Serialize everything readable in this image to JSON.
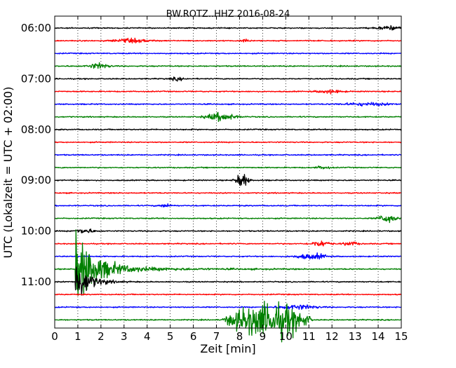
{
  "chart_data": {
    "type": "line",
    "title": "BW.ROTZ..HHZ 2016-08-24",
    "xlabel": "Zeit  [min]",
    "ylabel": "UTC (Lokalzeit = UTC + 02:00)",
    "xlim": [
      0,
      15
    ],
    "x_ticks": [
      "0",
      "1",
      "2",
      "3",
      "4",
      "5",
      "6",
      "7",
      "8",
      "9",
      "10",
      "11",
      "12",
      "13",
      "14",
      "15"
    ],
    "y_ticks": [
      {
        "label": "06:00",
        "hour": 6.0
      },
      {
        "label": "07:00",
        "hour": 7.0
      },
      {
        "label": "08:00",
        "hour": 8.0
      },
      {
        "label": "09:00",
        "hour": 9.0
      },
      {
        "label": "10:00",
        "hour": 10.0
      },
      {
        "label": "11:00",
        "hour": 11.0
      }
    ],
    "row_interval_minutes": 15,
    "row_colors": [
      "#000000",
      "#ff0000",
      "#0000ff",
      "#008000"
    ],
    "grid": "vertical-dotted",
    "traces": [
      {
        "start": "06:00",
        "color": "#000000",
        "noise": 1.6,
        "events": [
          {
            "t": 14.5,
            "amp": 3,
            "dur": 0.6
          }
        ]
      },
      {
        "start": "06:15",
        "color": "#ff0000",
        "noise": 1.6,
        "events": [
          {
            "t": 3.3,
            "amp": 3,
            "dur": 0.8
          },
          {
            "t": 8.3,
            "amp": 4,
            "dur": 0.15
          }
        ]
      },
      {
        "start": "06:30",
        "color": "#0000ff",
        "noise": 1.5,
        "events": []
      },
      {
        "start": "06:45",
        "color": "#008000",
        "noise": 1.5,
        "events": [
          {
            "t": 1.9,
            "amp": 5,
            "dur": 0.4
          }
        ]
      },
      {
        "start": "07:00",
        "color": "#000000",
        "noise": 1.6,
        "events": [
          {
            "t": 5.3,
            "amp": 2.5,
            "dur": 0.3
          }
        ]
      },
      {
        "start": "07:15",
        "color": "#ff0000",
        "noise": 1.6,
        "events": [
          {
            "t": 11.9,
            "amp": 3,
            "dur": 0.5
          }
        ]
      },
      {
        "start": "07:30",
        "color": "#0000ff",
        "noise": 1.6,
        "events": [
          {
            "t": 13.5,
            "amp": 2.5,
            "dur": 1
          }
        ]
      },
      {
        "start": "07:45",
        "color": "#008000",
        "noise": 1.5,
        "events": [
          {
            "t": 7.2,
            "amp": 7,
            "dur": 0.6
          }
        ]
      },
      {
        "start": "08:00",
        "color": "#000000",
        "noise": 1.6,
        "events": []
      },
      {
        "start": "08:15",
        "color": "#ff0000",
        "noise": 1.6,
        "events": []
      },
      {
        "start": "08:30",
        "color": "#0000ff",
        "noise": 1.6,
        "events": []
      },
      {
        "start": "08:45",
        "color": "#008000",
        "noise": 1.5,
        "events": [
          {
            "t": 11.6,
            "amp": 2.5,
            "dur": 0.3
          }
        ]
      },
      {
        "start": "09:00",
        "color": "#000000",
        "noise": 1.6,
        "events": [
          {
            "t": 8.1,
            "amp": 13,
            "dur": 0.25
          }
        ]
      },
      {
        "start": "09:15",
        "color": "#ff0000",
        "noise": 1.6,
        "events": []
      },
      {
        "start": "09:30",
        "color": "#0000ff",
        "noise": 1.5,
        "events": [
          {
            "t": 4.8,
            "amp": 2.5,
            "dur": 0.3
          }
        ]
      },
      {
        "start": "09:45",
        "color": "#008000",
        "noise": 1.5,
        "events": [
          {
            "t": 14.4,
            "amp": 8,
            "dur": 0.35
          }
        ]
      },
      {
        "start": "10:00",
        "color": "#000000",
        "noise": 1.6,
        "events": [
          {
            "t": 1.3,
            "amp": 4,
            "dur": 0.4
          }
        ]
      },
      {
        "start": "10:15",
        "color": "#ff0000",
        "noise": 1.6,
        "events": [
          {
            "t": 11.5,
            "amp": 5,
            "dur": 0.4
          },
          {
            "t": 12.8,
            "amp": 3.5,
            "dur": 0.3
          }
        ]
      },
      {
        "start": "10:30",
        "color": "#0000ff",
        "noise": 1.6,
        "events": [
          {
            "t": 10.9,
            "amp": 4,
            "dur": 0.5
          },
          {
            "t": 11.5,
            "amp": 3,
            "dur": 0.3
          }
        ]
      },
      {
        "start": "10:45",
        "color": "#008000",
        "noise": 1.5,
        "quake": {
          "start": 0.9,
          "amp": 68,
          "decay": 0.75,
          "floor": 5,
          "floor_decay": 3.2
        }
      },
      {
        "start": "11:00",
        "color": "#000000",
        "noise": 1.6,
        "quake": {
          "start": 0.9,
          "amp": 45,
          "decay": 0.5,
          "floor": 0,
          "floor_decay": 1
        }
      },
      {
        "start": "11:15",
        "color": "#ff0000",
        "noise": 1.6,
        "events": []
      },
      {
        "start": "11:30",
        "color": "#0000ff",
        "noise": 1.6,
        "events": [
          {
            "t": 10.5,
            "amp": 4,
            "dur": 0.8
          }
        ]
      },
      {
        "start": "11:45",
        "color": "#008000",
        "noise": 1.6,
        "burst": {
          "start": 7.2,
          "end": 11.2,
          "peak": 9.3,
          "amp": 30
        }
      }
    ]
  }
}
